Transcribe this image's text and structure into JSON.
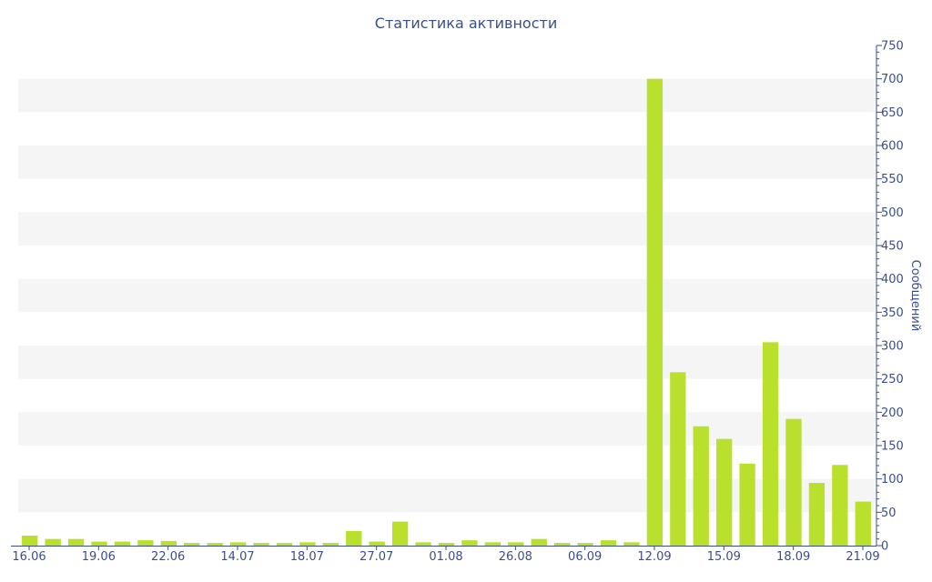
{
  "chart_data": {
    "type": "bar",
    "title": "Статистика активности",
    "ylabel": "Сообщений",
    "xlabel": "",
    "ylim": [
      0,
      750
    ],
    "y_ticks": [
      0,
      50,
      100,
      150,
      200,
      250,
      300,
      350,
      400,
      450,
      500,
      550,
      600,
      650,
      700,
      750
    ],
    "y_axis_side": "right",
    "x_tick_labels": [
      "16.06",
      "19.06",
      "22.06",
      "14.07",
      "18.07",
      "27.07",
      "01.08",
      "26.08",
      "06.09",
      "12.09",
      "15.09",
      "18.09",
      "21.09"
    ],
    "values": [
      15,
      10,
      10,
      6,
      6,
      8,
      7,
      4,
      4,
      5,
      4,
      4,
      5,
      4,
      22,
      6,
      36,
      5,
      4,
      8,
      5,
      5,
      10,
      4,
      4,
      8,
      5,
      700,
      260,
      179,
      160,
      123,
      305,
      190,
      94,
      121,
      66
    ],
    "grid": "alternating horizontal bands",
    "legend": "none",
    "colors": {
      "bar": "#b8e02c",
      "text": "#3a4f8a",
      "band": "#f5f5f5"
    }
  }
}
